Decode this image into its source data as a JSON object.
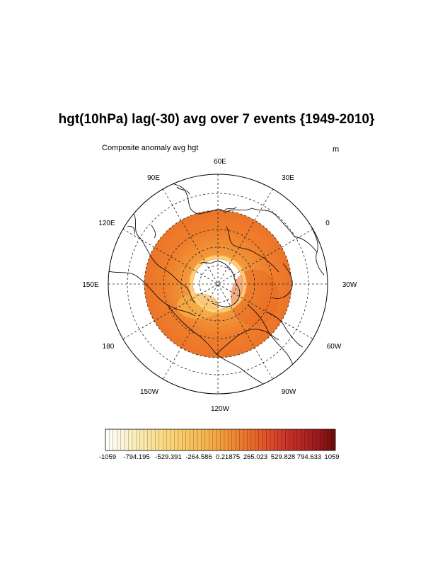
{
  "title": "hgt(10hPa) lag(-30) avg over 7 events {1949-2010}",
  "subtitle_left": "Composite anomaly avg hgt",
  "units": "m",
  "map": {
    "projection": "north-polar-stereographic",
    "longitude_labels": [
      "60E",
      "30E",
      "0",
      "30W",
      "60W",
      "90W",
      "120W",
      "150W",
      "180",
      "150E",
      "120E",
      "90E"
    ],
    "shaded_field_color": "#ef7f2a",
    "inner_hole_color": "#ffffff"
  },
  "colorbar": {
    "tick_labels": [
      "-1059",
      "-794.195",
      "-529.391",
      "-264.586",
      "0.21875",
      "265.023",
      "529.828",
      "794.633",
      "1059"
    ],
    "color_start": "#ffffff",
    "color_mid": "#f6a443",
    "color_end": "#6e0b0b"
  }
}
